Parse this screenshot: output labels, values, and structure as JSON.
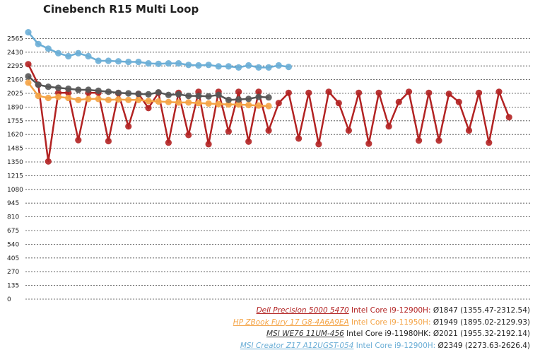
{
  "chart_data": {
    "type": "line",
    "title": "Cinebench R15 Multi Loop",
    "xlabel": "",
    "ylabel": "",
    "ylim": [
      0,
      2700
    ],
    "yticks": [
      0,
      135,
      270,
      405,
      540,
      675,
      810,
      945,
      1080,
      1215,
      1350,
      1485,
      1620,
      1755,
      1890,
      2025,
      2160,
      2295,
      2430,
      2565
    ],
    "series": [
      {
        "name": "Dell Precision 5000 5470",
        "cpu": "Intel Core i9-12900H:",
        "summary": "Ø1847 (1355.47-2312.54)",
        "color": "#b22222",
        "values": [
          2312,
          2110,
          1355,
          2030,
          2030,
          1565,
          2030,
          2030,
          1555,
          2025,
          1700,
          2020,
          1880,
          2030,
          1540,
          2030,
          1615,
          2040,
          1525,
          2040,
          1650,
          2040,
          1550,
          2040,
          1660,
          1930,
          2030,
          1580,
          2030,
          1525,
          2040,
          1930,
          1660,
          2030,
          1530,
          2030,
          1700,
          1940,
          2040,
          1560,
          2030,
          1560,
          2020,
          1940,
          1660,
          2030,
          1540,
          2040,
          1790
        ]
      },
      {
        "name": "HP ZBook Fury 17 G8-4A6A9EA",
        "cpu": "Intel Core i9-11950H:",
        "summary": "Ø1949 (1895.02-2129.93)",
        "color": "#f4a345",
        "values": [
          2130,
          2000,
          1980,
          1990,
          1980,
          1960,
          1970,
          1970,
          1960,
          1965,
          1960,
          1960,
          1950,
          1945,
          1940,
          1935,
          1935,
          1930,
          1925,
          1920,
          1915,
          1915,
          1910,
          1905,
          1900
        ]
      },
      {
        "name": "MSI WE76 11UM-456",
        "cpu": "Intel Core i9-11980HK:",
        "summary": "Ø2021 (1955.32-2192.14)",
        "color": "#555555",
        "values": [
          2192,
          2110,
          2090,
          2080,
          2070,
          2060,
          2060,
          2050,
          2040,
          2030,
          2025,
          2020,
          2015,
          2035,
          2010,
          2015,
          2000,
          2000,
          1995,
          2010,
          1960,
          1965,
          1970,
          1990,
          1985
        ]
      },
      {
        "name": "MSI Creator Z17 A12UGST-054",
        "cpu": "Intel Core i9-12900H:",
        "summary": "Ø2349 (2273.63-2626.4)",
        "color": "#6baed6",
        "values": [
          2626,
          2510,
          2465,
          2420,
          2390,
          2420,
          2390,
          2345,
          2345,
          2340,
          2335,
          2335,
          2320,
          2315,
          2320,
          2320,
          2305,
          2300,
          2305,
          2290,
          2290,
          2280,
          2300,
          2280,
          2280,
          2300,
          2285
        ]
      }
    ],
    "legend": "bottom-right"
  }
}
